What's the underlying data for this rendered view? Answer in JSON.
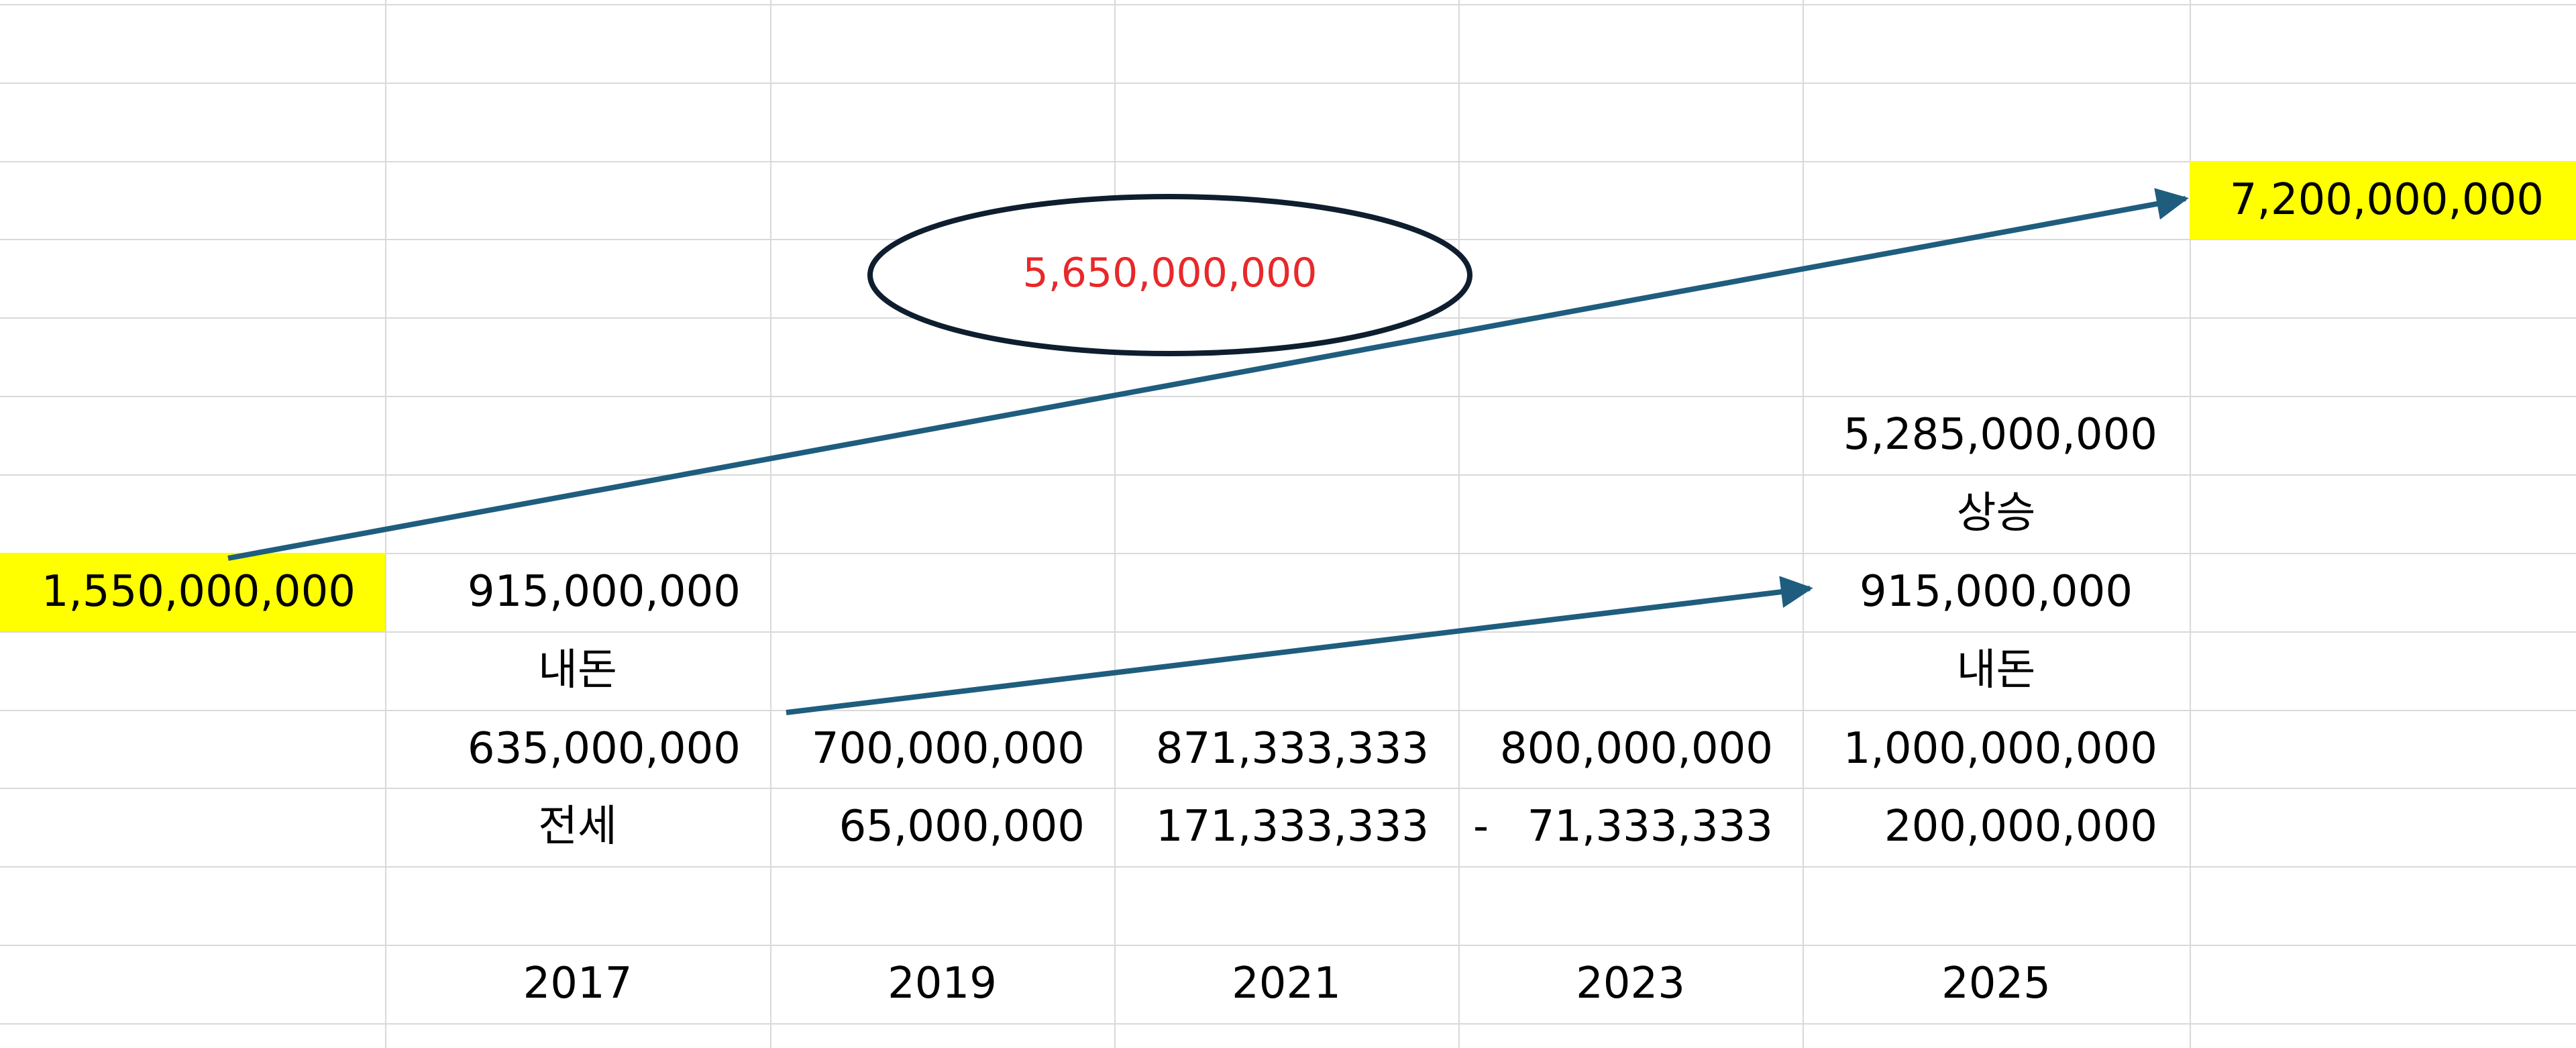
{
  "colors": {
    "highlight": "#ffff00",
    "arrow": "#1f5d7e",
    "ellipse_stroke": "#0e1e2e",
    "emphasis_text": "#e8282a",
    "gridline": "#d9d9d9"
  },
  "values": {
    "start_total": "1,550,000,000",
    "end_total": "7,200,000,000",
    "gain_circled": "5,650,000,000",
    "rise_amount": "5,285,000,000",
    "rise_label": "상승",
    "own_money_2017": "915,000,000",
    "own_money_2017_label": "내돈",
    "own_money_2025": "915,000,000",
    "own_money_2025_label": "내돈",
    "jeonse_label": "전세"
  },
  "rows": {
    "amounts": [
      "635,000,000",
      "700,000,000",
      "871,333,333",
      "800,000,000",
      "1,000,000,000"
    ],
    "changes": [
      "65,000,000",
      "171,333,333",
      "-",
      "71,333,333",
      "200,000,000"
    ],
    "years": [
      "2017",
      "2019",
      "2021",
      "2023",
      "2025"
    ]
  }
}
